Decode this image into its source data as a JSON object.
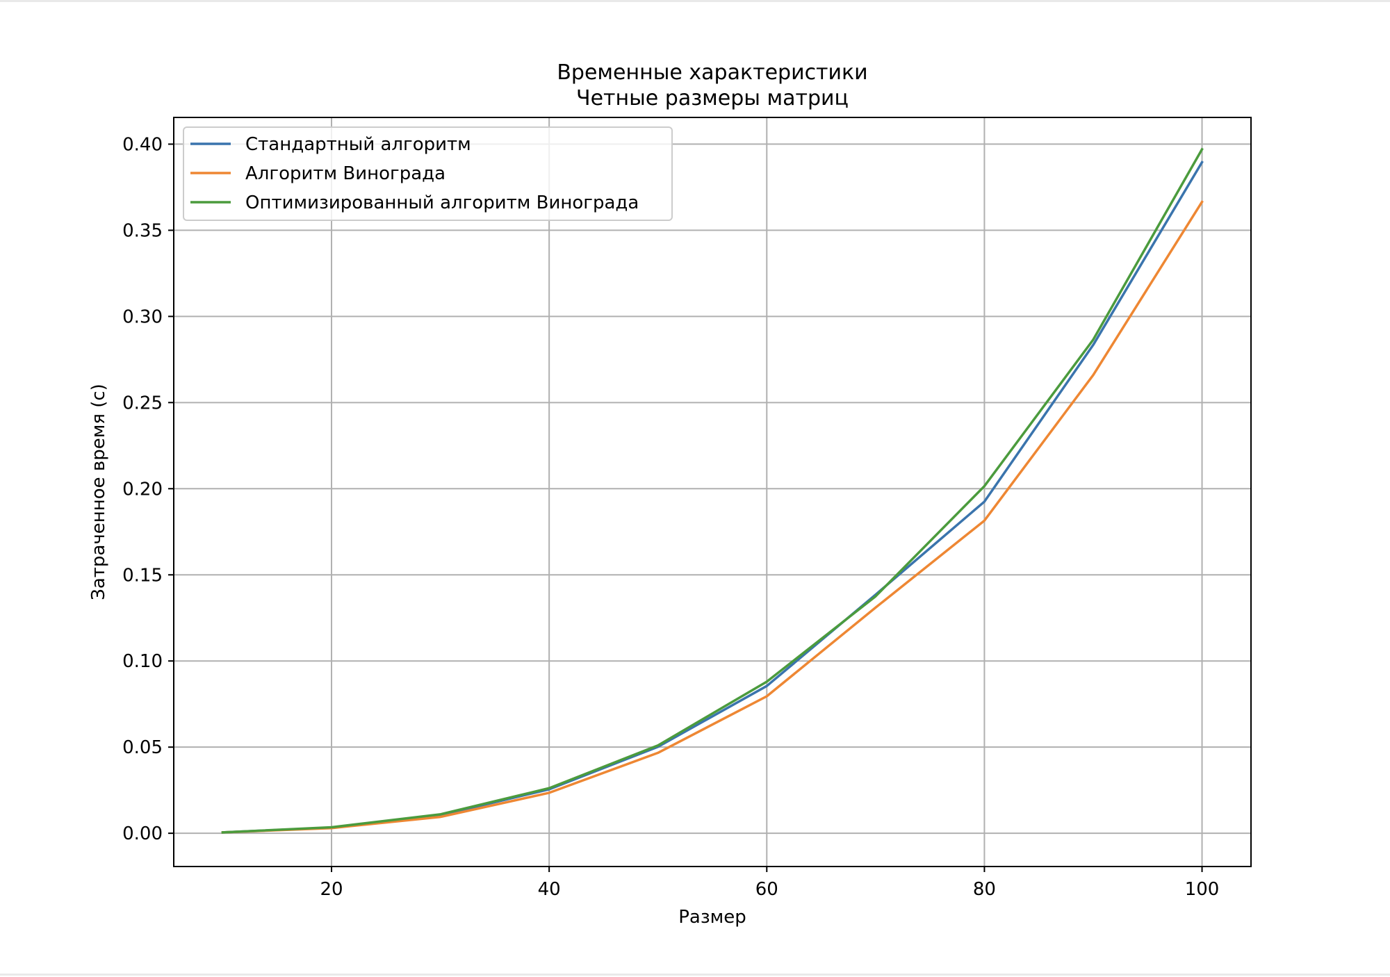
{
  "chart_data": {
    "type": "line",
    "title": "Временные характеристики",
    "subtitle": "Четные размеры матриц",
    "xlabel": "Размер",
    "ylabel": "Затраченное время (с)",
    "x": [
      10,
      20,
      30,
      40,
      50,
      60,
      70,
      80,
      90,
      100
    ],
    "xlim": [
      5.5,
      104.5
    ],
    "ylim": [
      -0.0193,
      0.4155
    ],
    "xticks": [
      20,
      40,
      60,
      80,
      100
    ],
    "xtick_labels": [
      "20",
      "40",
      "60",
      "80",
      "100"
    ],
    "yticks": [
      0.0,
      0.05,
      0.1,
      0.15,
      0.2,
      0.25,
      0.3,
      0.35,
      0.4
    ],
    "ytick_labels": [
      "0.00",
      "0.05",
      "0.10",
      "0.15",
      "0.20",
      "0.25",
      "0.30",
      "0.35",
      "0.40"
    ],
    "grid": true,
    "legend_position": "top-left",
    "series": [
      {
        "name": "Стандартный алгоритм",
        "color": "#3a74ad",
        "values": [
          0.0005,
          0.0033,
          0.0105,
          0.0255,
          0.0502,
          0.0855,
          0.1385,
          0.1925,
          0.2835,
          0.3895
        ]
      },
      {
        "name": "Алгоритм Винограда",
        "color": "#ee8733",
        "values": [
          0.0005,
          0.003,
          0.0095,
          0.0235,
          0.0467,
          0.0795,
          0.131,
          0.1815,
          0.266,
          0.3665
        ]
      },
      {
        "name": "Оптимизированный алгоритм Винограда",
        "color": "#4b9b3d",
        "values": [
          0.0005,
          0.0035,
          0.011,
          0.0262,
          0.051,
          0.088,
          0.1375,
          0.2015,
          0.2865,
          0.397
        ]
      }
    ]
  }
}
